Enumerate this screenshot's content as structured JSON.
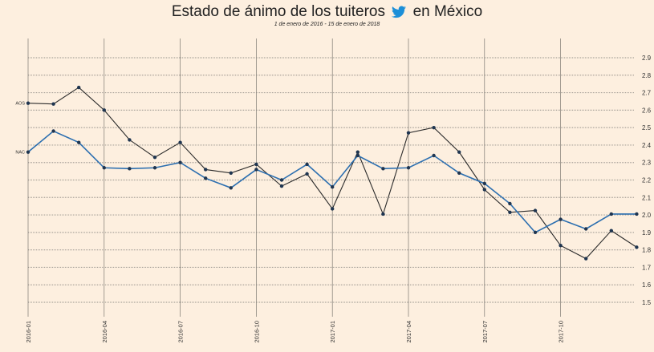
{
  "title_before": "Estado de ánimo de los tuiteros",
  "title_after": "en México",
  "title_icon": "twitter-bird-icon",
  "subtitle": "1 de enero de 2016 - 15 de enero de 2018",
  "chart_data": {
    "type": "line",
    "title": "Estado de ánimo de los tuiteros en México",
    "subtitle": "1 de enero de 2016 - 15 de enero de 2018",
    "xlabel": "",
    "ylabel": "",
    "ylim": [
      1.5,
      2.9
    ],
    "yticks": [
      "1.5",
      "1.6",
      "1.7",
      "1.8",
      "1.9",
      "2.0",
      "2.1",
      "2.2",
      "2.3",
      "2.4",
      "2.5",
      "2.6",
      "2.7",
      "2.8",
      "2.9"
    ],
    "xticks": [
      "2016-01",
      "2016-04",
      "2016-07",
      "2016-10",
      "2017-01",
      "2017-04",
      "2017-07",
      "2017-10"
    ],
    "x": [
      "2016-01",
      "2016-02",
      "2016-03",
      "2016-04",
      "2016-05",
      "2016-06",
      "2016-07",
      "2016-08",
      "2016-09",
      "2016-10",
      "2016-11",
      "2016-12",
      "2017-01",
      "2017-02",
      "2017-03",
      "2017-04",
      "2017-05",
      "2017-06",
      "2017-07",
      "2017-08",
      "2017-09",
      "2017-10",
      "2017-11",
      "2017-12",
      "2018-01"
    ],
    "grid": true,
    "series": [
      {
        "name": "AOS",
        "color": "#2b2b2b",
        "values": [
          2.64,
          2.635,
          2.73,
          2.6,
          2.43,
          2.33,
          2.415,
          2.26,
          2.24,
          2.29,
          2.165,
          2.235,
          2.035,
          2.36,
          2.005,
          2.47,
          2.5,
          2.36,
          2.145,
          2.015,
          2.025,
          1.825,
          1.75,
          1.91,
          1.815
        ]
      },
      {
        "name": "NAC",
        "color": "#2c6fb0",
        "values": [
          2.36,
          2.48,
          2.415,
          2.27,
          2.265,
          2.27,
          2.3,
          2.21,
          2.155,
          2.26,
          2.2,
          2.29,
          2.16,
          2.34,
          2.265,
          2.27,
          2.34,
          2.24,
          2.18,
          2.065,
          1.9,
          1.975,
          1.92,
          2.005,
          2.005
        ]
      }
    ]
  }
}
